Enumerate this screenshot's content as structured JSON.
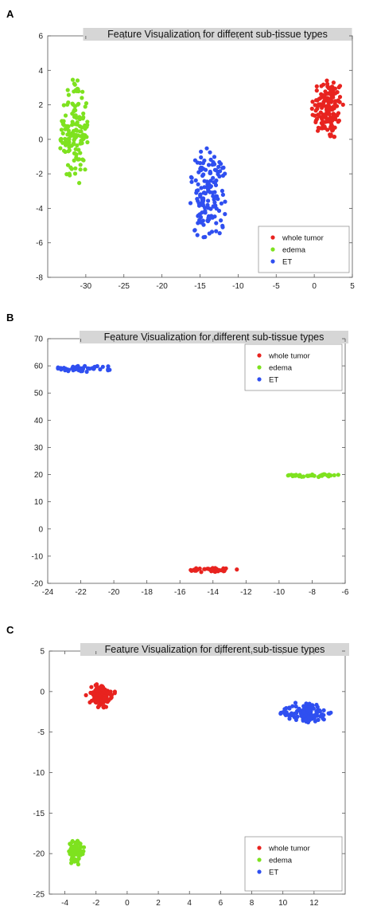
{
  "colors": {
    "whole_tumor": "#e8231f",
    "edema": "#7ee21f",
    "ET": "#2f4ff0",
    "title_bg": "#d6d6d6",
    "axis": "#555555"
  },
  "chart_data": [
    {
      "panel": "A",
      "type": "scatter",
      "title": "Feature Visualization for different sub-tissue types",
      "xlim": [
        -35,
        5
      ],
      "ylim": [
        -8,
        6
      ],
      "xticks": [
        -30,
        -25,
        -20,
        -15,
        -10,
        -5,
        0,
        5
      ],
      "yticks": [
        6,
        4,
        2,
        0,
        -2,
        -4,
        -6,
        -8
      ],
      "grid": false,
      "legend": "bottom-right",
      "series": [
        {
          "name": "whole tumor",
          "color_key": "whole_tumor",
          "cluster": {
            "cx": 1.8,
            "cy": 1.8,
            "rx": 2.2,
            "ry": 1.9,
            "n": 150
          }
        },
        {
          "name": "edema",
          "color_key": "edema",
          "cluster": {
            "cx": -31.5,
            "cy": 0.5,
            "rx": 2.0,
            "ry": 3.2,
            "n": 140
          }
        },
        {
          "name": "ET",
          "color_key": "ET",
          "cluster": {
            "cx": -14.0,
            "cy": -3.3,
            "rx": 2.6,
            "ry": 2.8,
            "n": 150
          }
        }
      ]
    },
    {
      "panel": "B",
      "type": "scatter",
      "title": "Feature Visualization for different sub-tissue types",
      "xlim": [
        -24,
        -6
      ],
      "ylim": [
        -20,
        70
      ],
      "xticks": [
        -24,
        -22,
        -20,
        -18,
        -16,
        -14,
        -12,
        -10,
        -8,
        -6
      ],
      "yticks": [
        70,
        60,
        50,
        40,
        30,
        20,
        10,
        0,
        -10,
        -20
      ],
      "grid": false,
      "legend": "top-right",
      "series": [
        {
          "name": "whole tumor",
          "color_key": "whole_tumor",
          "cluster": {
            "cx": -14.0,
            "cy": -15.0,
            "rx": 1.5,
            "ry": 1.0,
            "n": 40
          }
        },
        {
          "name": "edema",
          "color_key": "edema",
          "cluster": {
            "cx": -8.0,
            "cy": 19.7,
            "rx": 1.9,
            "ry": 0.6,
            "n": 34
          }
        },
        {
          "name": "ET",
          "color_key": "ET",
          "cluster": {
            "cx": -21.8,
            "cy": 59.0,
            "rx": 2.0,
            "ry": 1.2,
            "n": 44
          }
        }
      ]
    },
    {
      "panel": "C",
      "type": "scatter",
      "title": "Feature Visualization for different sub-tissue types",
      "xlim": [
        -5,
        14
      ],
      "ylim": [
        -25,
        5
      ],
      "xticks": [
        -4,
        -2,
        0,
        2,
        4,
        6,
        8,
        10,
        12
      ],
      "yticks": [
        5,
        0,
        -5,
        -10,
        -15,
        -20,
        -25
      ],
      "grid": false,
      "legend": "bottom-right",
      "series": [
        {
          "name": "whole tumor",
          "color_key": "whole_tumor",
          "cluster": {
            "cx": -1.7,
            "cy": -0.6,
            "rx": 1.0,
            "ry": 1.6,
            "n": 100
          }
        },
        {
          "name": "edema",
          "color_key": "edema",
          "cluster": {
            "cx": -3.3,
            "cy": -19.8,
            "rx": 0.6,
            "ry": 1.7,
            "n": 70
          }
        },
        {
          "name": "ET",
          "color_key": "ET",
          "cluster": {
            "cx": 11.5,
            "cy": -2.6,
            "rx": 1.7,
            "ry": 1.4,
            "n": 110
          }
        }
      ]
    }
  ]
}
